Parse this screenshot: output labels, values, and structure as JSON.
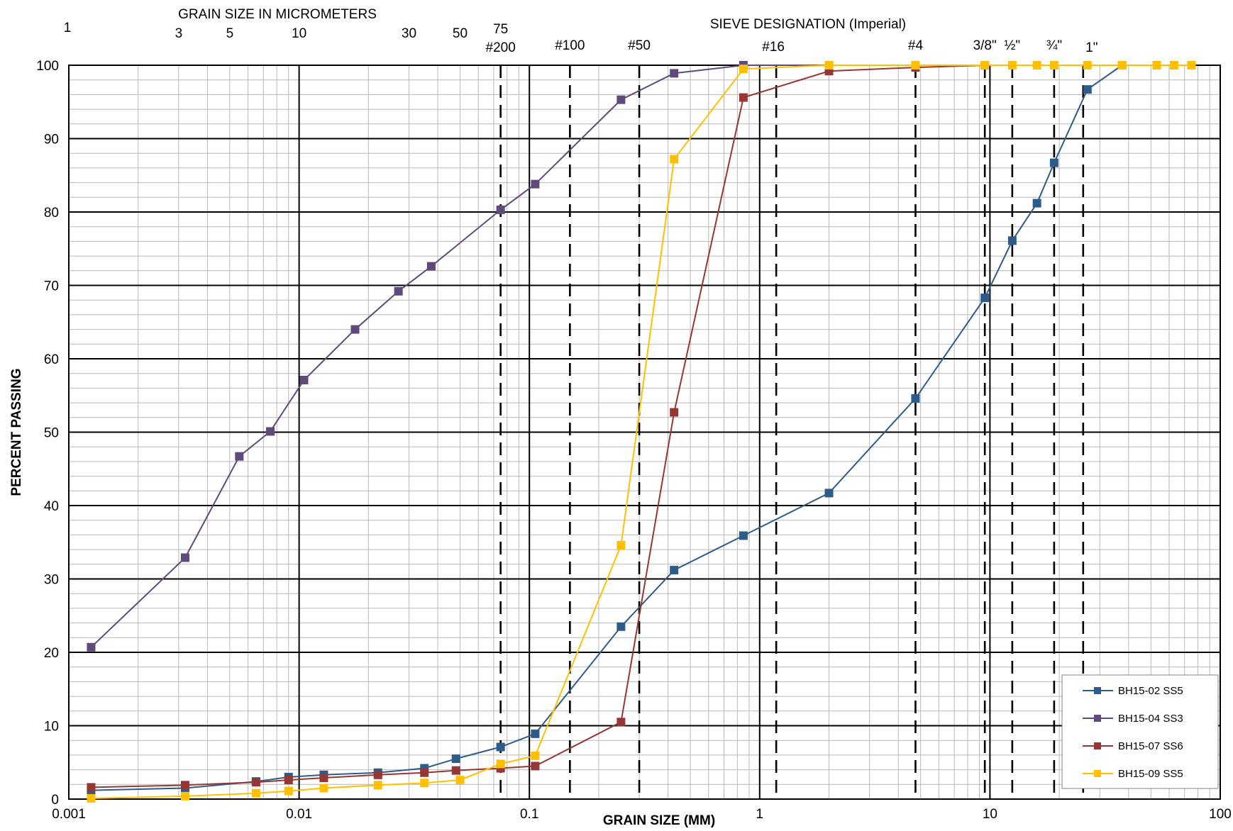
{
  "chart_data": {
    "type": "line",
    "x_scale": "log",
    "xlim": [
      0.001,
      100
    ],
    "ylim": [
      0,
      100
    ],
    "xlabel": "GRAIN SIZE (MM)",
    "ylabel": "PERCENT PASSING",
    "x_ticks": [
      {
        "value": 0.001,
        "label": "0.001"
      },
      {
        "value": 0.01,
        "label": "0.01"
      },
      {
        "value": 0.1,
        "label": "0.1"
      },
      {
        "value": 1,
        "label": "1"
      },
      {
        "value": 10,
        "label": "10"
      },
      {
        "value": 100,
        "label": "100"
      }
    ],
    "y_ticks": [
      0,
      10,
      20,
      30,
      40,
      50,
      60,
      70,
      80,
      90,
      100
    ],
    "y_tick_labels": [
      "0",
      "10",
      "20",
      "30",
      "40",
      "50",
      "60",
      "70",
      "80",
      "90",
      "100"
    ],
    "grid": true,
    "top_axis_micrometers": {
      "title": "GRAIN SIZE  IN  MICROMETERS",
      "labels": [
        {
          "value": 0.001,
          "label": "1"
        },
        {
          "value": 0.003,
          "label": "3"
        },
        {
          "value": 0.005,
          "label": "5"
        },
        {
          "value": 0.01,
          "label": "10"
        },
        {
          "value": 0.03,
          "label": "30"
        },
        {
          "value": 0.05,
          "label": "50"
        },
        {
          "value": 0.075,
          "label": "75"
        }
      ]
    },
    "top_axis_sieves": {
      "title": "SIEVE  DESIGNATION  (Imperial)",
      "sieves": [
        {
          "value": 0.075,
          "label": "#200"
        },
        {
          "value": 0.15,
          "label": "#100"
        },
        {
          "value": 0.3,
          "label": "#50"
        },
        {
          "value": 1.18,
          "label": "#16"
        },
        {
          "value": 4.75,
          "label": "#4"
        },
        {
          "value": 9.5,
          "label": "3/8\""
        },
        {
          "value": 12.5,
          "label": "½\""
        },
        {
          "value": 19,
          "label": "¾\""
        },
        {
          "value": 25.4,
          "label": "1\""
        }
      ]
    },
    "legend_position": "bottom-right",
    "series": [
      {
        "name": "BH15-02 SS5",
        "color": "#2E5C8A",
        "points": [
          [
            0.00125,
            1.2
          ],
          [
            0.0032,
            1.5
          ],
          [
            0.0065,
            2.4
          ],
          [
            0.009,
            3.0
          ],
          [
            0.0128,
            3.3
          ],
          [
            0.022,
            3.6
          ],
          [
            0.035,
            4.2
          ],
          [
            0.048,
            5.5
          ],
          [
            0.075,
            7.1
          ],
          [
            0.106,
            8.9
          ],
          [
            0.25,
            23.5
          ],
          [
            0.425,
            31.2
          ],
          [
            0.85,
            35.9
          ],
          [
            2.0,
            41.7
          ],
          [
            4.75,
            54.6
          ],
          [
            9.5,
            68.3
          ],
          [
            12.5,
            76.1
          ],
          [
            16,
            81.2
          ],
          [
            19,
            86.7
          ],
          [
            26.5,
            96.7
          ],
          [
            37.5,
            100
          ]
        ]
      },
      {
        "name": "BH15-04 SS3",
        "color": "#604A7B",
        "points": [
          [
            0.00125,
            20.7
          ],
          [
            0.0032,
            32.9
          ],
          [
            0.0055,
            46.7
          ],
          [
            0.0075,
            50.1
          ],
          [
            0.0105,
            57.1
          ],
          [
            0.0175,
            64.0
          ],
          [
            0.027,
            69.2
          ],
          [
            0.0375,
            72.6
          ],
          [
            0.075,
            80.3
          ],
          [
            0.106,
            83.8
          ],
          [
            0.25,
            95.3
          ],
          [
            0.425,
            98.9
          ],
          [
            0.85,
            100
          ],
          [
            2.0,
            100
          ]
        ]
      },
      {
        "name": "BH15-07 SS6",
        "color": "#953735",
        "points": [
          [
            0.00125,
            1.6
          ],
          [
            0.0032,
            1.9
          ],
          [
            0.0065,
            2.3
          ],
          [
            0.009,
            2.6
          ],
          [
            0.0128,
            2.9
          ],
          [
            0.022,
            3.3
          ],
          [
            0.035,
            3.6
          ],
          [
            0.048,
            3.9
          ],
          [
            0.075,
            4.2
          ],
          [
            0.106,
            4.5
          ],
          [
            0.25,
            10.5
          ],
          [
            0.425,
            52.7
          ],
          [
            0.85,
            95.6
          ],
          [
            2.0,
            99.2
          ],
          [
            4.75,
            99.7
          ],
          [
            9.5,
            100
          ]
        ]
      },
      {
        "name": "BH15-09 SS5",
        "color": "#FFC000",
        "points": [
          [
            0.00125,
            0.1
          ],
          [
            0.0032,
            0.4
          ],
          [
            0.0065,
            0.8
          ],
          [
            0.009,
            1.1
          ],
          [
            0.0128,
            1.5
          ],
          [
            0.022,
            1.9
          ],
          [
            0.035,
            2.2
          ],
          [
            0.05,
            2.6
          ],
          [
            0.075,
            4.8
          ],
          [
            0.106,
            5.9
          ],
          [
            0.25,
            34.6
          ],
          [
            0.425,
            87.2
          ],
          [
            0.85,
            99.5
          ],
          [
            2.0,
            100
          ],
          [
            4.75,
            100
          ],
          [
            9.5,
            100
          ],
          [
            12.5,
            100
          ],
          [
            16,
            100
          ],
          [
            19,
            100
          ],
          [
            26.5,
            100
          ],
          [
            37.5,
            100
          ],
          [
            53,
            100
          ],
          [
            63,
            100
          ],
          [
            75,
            100
          ]
        ]
      }
    ]
  }
}
